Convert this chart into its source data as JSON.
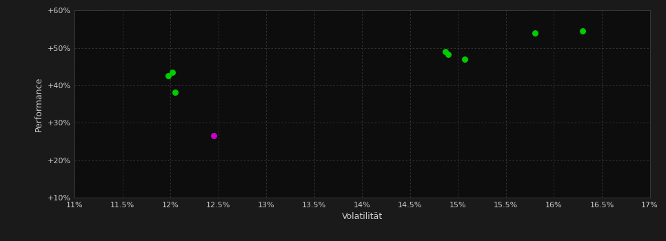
{
  "background_color": "#1a1a1a",
  "plot_bg_color": "#0d0d0d",
  "grid_color": "#3a3a3a",
  "xlabel": "Volatilität",
  "ylabel": "Performance",
  "xlim": [
    0.11,
    0.17
  ],
  "ylim": [
    0.1,
    0.6
  ],
  "xticks": [
    0.11,
    0.115,
    0.12,
    0.125,
    0.13,
    0.135,
    0.14,
    0.145,
    0.15,
    0.155,
    0.16,
    0.165,
    0.17
  ],
  "yticks": [
    0.1,
    0.2,
    0.3,
    0.4,
    0.5,
    0.6
  ],
  "ytick_labels": [
    "+10%",
    "+20%",
    "+30%",
    "+40%",
    "+50%",
    "+60%"
  ],
  "xtick_labels": [
    "11%",
    "11.5%",
    "12%",
    "12.5%",
    "13%",
    "13.5%",
    "14%",
    "14.5%",
    "15%",
    "15.5%",
    "16%",
    "16.5%",
    "17%"
  ],
  "green_points": [
    [
      0.1198,
      0.425
    ],
    [
      0.1202,
      0.435
    ],
    [
      0.1205,
      0.381
    ],
    [
      0.1487,
      0.49
    ],
    [
      0.149,
      0.482
    ],
    [
      0.1507,
      0.47
    ],
    [
      0.158,
      0.54
    ],
    [
      0.163,
      0.545
    ]
  ],
  "magenta_points": [
    [
      0.1245,
      0.265
    ]
  ],
  "point_size": 30,
  "green_color": "#00cc00",
  "magenta_color": "#cc00cc",
  "tick_color": "#cccccc",
  "label_color": "#cccccc",
  "axis_color": "#444444"
}
